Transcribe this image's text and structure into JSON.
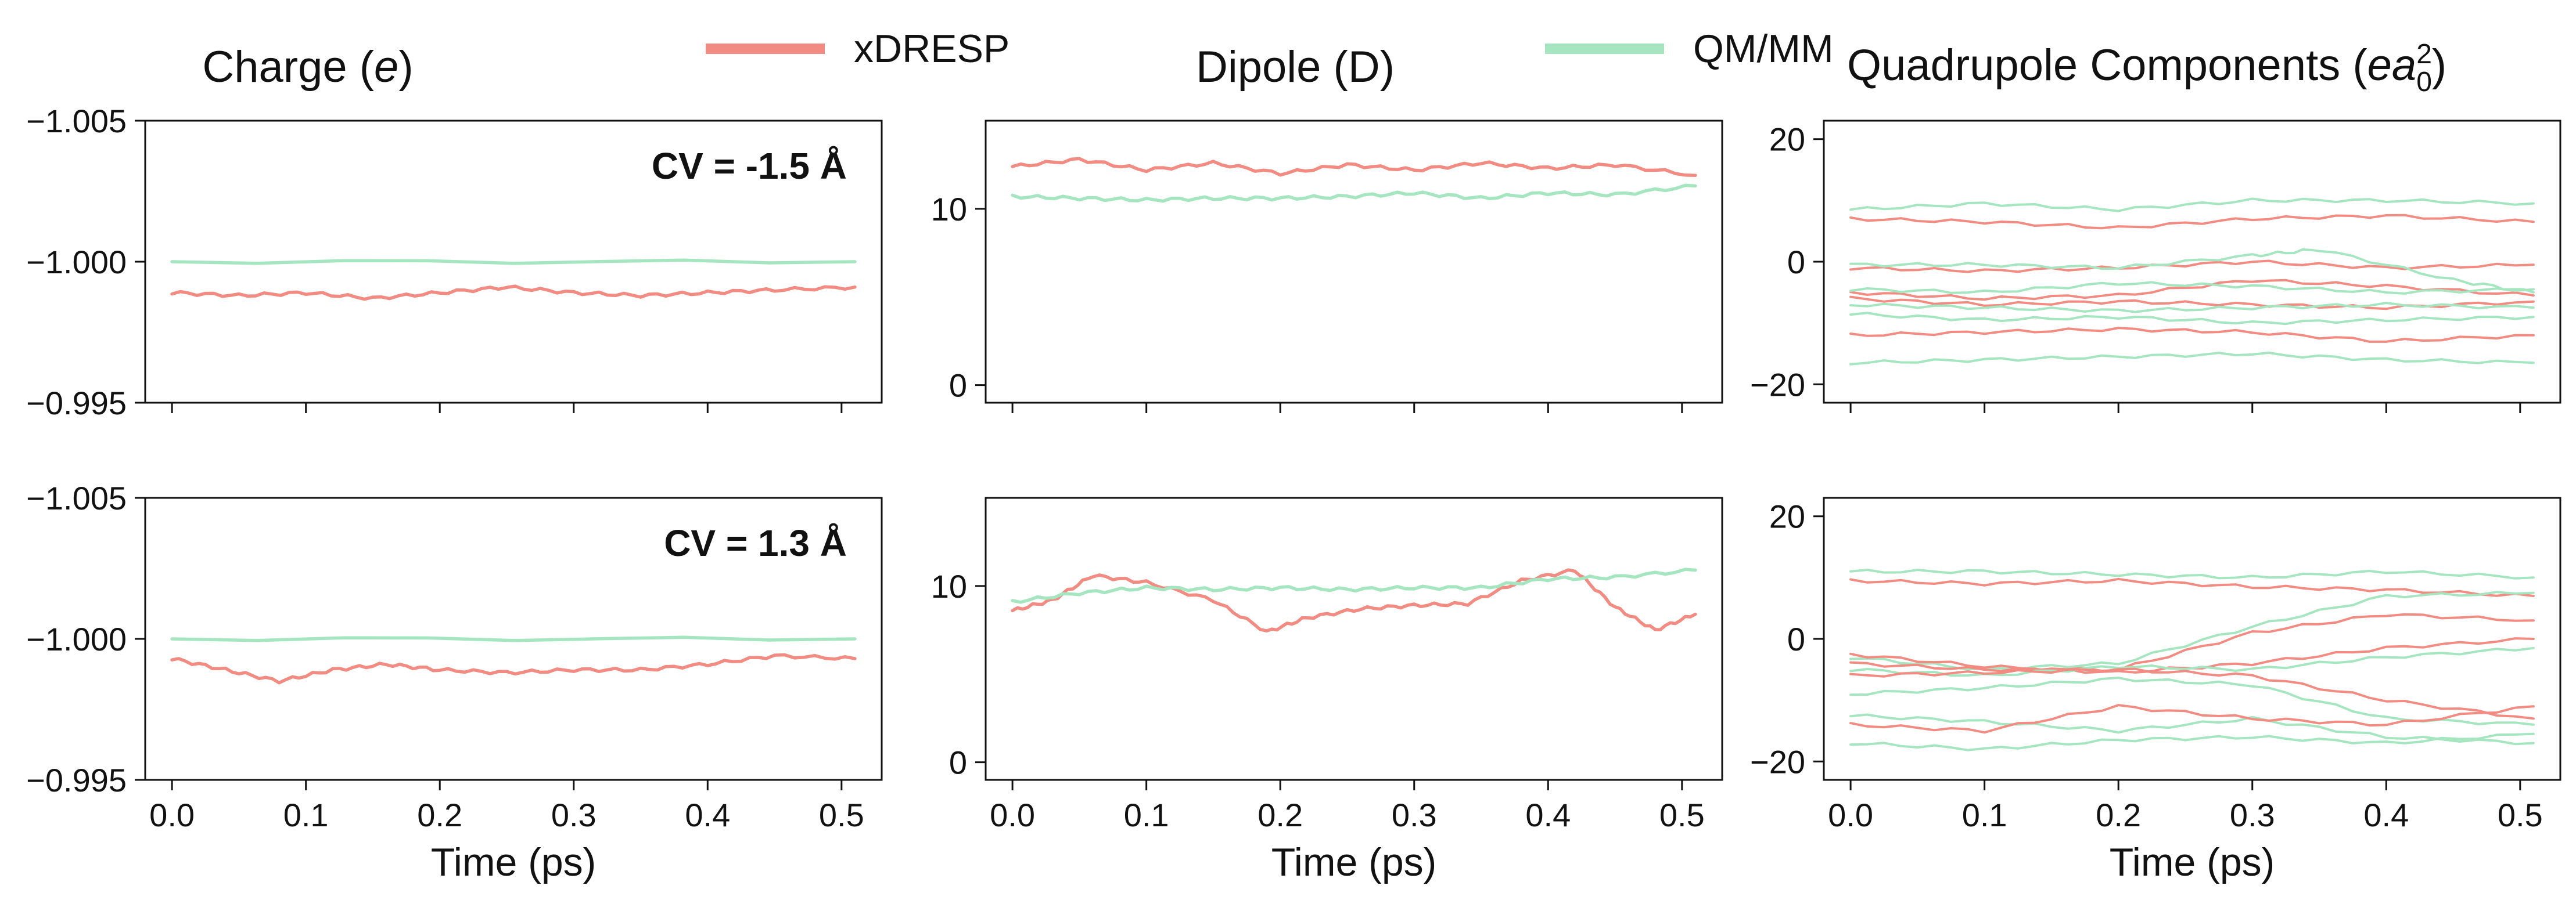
{
  "legend": {
    "xdresp": {
      "label": "xDRESP",
      "color": "#f28b82"
    },
    "qmmm": {
      "label": "QM/MM",
      "color": "#a5e6c0"
    }
  },
  "columns": {
    "charge": {
      "title_text": "Charge (",
      "title_sym": "e",
      "title_end": ")"
    },
    "dipole": {
      "title": "Dipole (D)"
    },
    "quadrupole": {
      "title_text": "Quadrupole Components (",
      "title_sym": "ea",
      "title_sub": "0",
      "title_sup": "2",
      "title_end": ")"
    }
  },
  "chart_data": [
    {
      "type": "line",
      "id": "charge-top",
      "title": "Charge (e)",
      "annotation": "CV = -1.5 Å",
      "xlabel": "",
      "ylabel": "",
      "xlim": [
        -0.02,
        0.53
      ],
      "ylim": [
        -1.005,
        -0.995
      ],
      "inverted_y": true,
      "x_ticks": [
        0.0,
        0.1,
        0.2,
        0.3,
        0.4,
        0.5
      ],
      "y_ticks": [
        -1.005,
        -1.0,
        -0.995
      ],
      "y_tick_labels": [
        "−1.005",
        "−1.000",
        "−0.995"
      ],
      "series": [
        {
          "name": "QM/MM",
          "x": [
            0,
            0.51
          ],
          "values": [
            -1.0,
            -1.0
          ]
        },
        {
          "name": "xDRESP",
          "x": [
            0,
            0.05,
            0.1,
            0.15,
            0.2,
            0.25,
            0.3,
            0.35,
            0.4,
            0.45,
            0.51
          ],
          "values": [
            -0.9989,
            -0.9988,
            -0.9989,
            -0.9987,
            -0.9989,
            -0.9991,
            -0.9989,
            -0.9988,
            -0.9989,
            -0.999,
            -0.9991
          ]
        }
      ]
    },
    {
      "type": "line",
      "id": "charge-bottom",
      "title": "",
      "annotation": "CV = 1.3 Å",
      "xlabel": "Time (ps)",
      "ylabel": "",
      "xlim": [
        -0.02,
        0.53
      ],
      "ylim": [
        -1.005,
        -0.995
      ],
      "inverted_y": true,
      "x_ticks": [
        0.0,
        0.1,
        0.2,
        0.3,
        0.4,
        0.5
      ],
      "x_tick_labels": [
        "0.0",
        "0.1",
        "0.2",
        "0.3",
        "0.4",
        "0.5"
      ],
      "y_ticks": [
        -1.005,
        -1.0,
        -0.995
      ],
      "y_tick_labels": [
        "−1.005",
        "−1.000",
        "−0.995"
      ],
      "series": [
        {
          "name": "QM/MM",
          "x": [
            0,
            0.51
          ],
          "values": [
            -1.0,
            -1.0
          ]
        },
        {
          "name": "xDRESP",
          "x": [
            0,
            0.04,
            0.08,
            0.12,
            0.16,
            0.2,
            0.25,
            0.3,
            0.35,
            0.4,
            0.45,
            0.51
          ],
          "values": [
            -0.9993,
            -0.9989,
            -0.9985,
            -0.9989,
            -0.9991,
            -0.9989,
            -0.9988,
            -0.9989,
            -0.9989,
            -0.9991,
            -0.9994,
            -0.9993
          ]
        }
      ]
    },
    {
      "type": "line",
      "id": "dipole-top",
      "title": "Dipole (D)",
      "xlabel": "",
      "ylabel": "",
      "xlim": [
        -0.02,
        0.53
      ],
      "ylim": [
        -1,
        15
      ],
      "x_ticks": [
        0.0,
        0.1,
        0.2,
        0.3,
        0.4,
        0.5
      ],
      "y_ticks": [
        0,
        10
      ],
      "y_tick_labels": [
        "0",
        "10"
      ],
      "series": [
        {
          "name": "xDRESP",
          "x": [
            0,
            0.05,
            0.1,
            0.15,
            0.2,
            0.25,
            0.3,
            0.35,
            0.4,
            0.45,
            0.51
          ],
          "values": [
            12.4,
            12.8,
            12.2,
            12.6,
            12.0,
            12.5,
            12.2,
            12.6,
            12.3,
            12.5,
            11.9
          ]
        },
        {
          "name": "QM/MM",
          "x": [
            0,
            0.05,
            0.1,
            0.15,
            0.2,
            0.25,
            0.3,
            0.35,
            0.4,
            0.45,
            0.51
          ],
          "values": [
            10.7,
            10.6,
            10.5,
            10.6,
            10.6,
            10.7,
            10.9,
            10.6,
            10.9,
            10.8,
            11.3
          ]
        }
      ]
    },
    {
      "type": "line",
      "id": "dipole-bottom",
      "title": "",
      "xlabel": "Time (ps)",
      "ylabel": "",
      "xlim": [
        -0.02,
        0.53
      ],
      "ylim": [
        -1,
        15
      ],
      "x_ticks": [
        0.0,
        0.1,
        0.2,
        0.3,
        0.4,
        0.5
      ],
      "x_tick_labels": [
        "0.0",
        "0.1",
        "0.2",
        "0.3",
        "0.4",
        "0.5"
      ],
      "y_ticks": [
        0,
        10
      ],
      "y_tick_labels": [
        "0",
        "10"
      ],
      "series": [
        {
          "name": "xDRESP",
          "x": [
            0,
            0.03,
            0.06,
            0.1,
            0.15,
            0.19,
            0.22,
            0.26,
            0.3,
            0.34,
            0.38,
            0.42,
            0.45,
            0.48,
            0.51
          ],
          "values": [
            8.6,
            9.2,
            10.6,
            10.2,
            9.2,
            7.4,
            8.2,
            8.7,
            8.9,
            9.0,
            10.3,
            10.9,
            8.8,
            7.5,
            8.4
          ]
        },
        {
          "name": "QM/MM",
          "x": [
            0,
            0.05,
            0.1,
            0.15,
            0.2,
            0.25,
            0.3,
            0.35,
            0.4,
            0.45,
            0.51
          ],
          "values": [
            9.1,
            9.6,
            9.9,
            9.8,
            9.9,
            9.8,
            9.9,
            9.9,
            10.4,
            10.5,
            10.9
          ]
        }
      ]
    },
    {
      "type": "line",
      "id": "quadrupole-top",
      "title": "Quadrupole Components (ea0^2)",
      "xlabel": "",
      "ylabel": "",
      "xlim": [
        -0.02,
        0.53
      ],
      "ylim": [
        -23,
        23
      ],
      "x_ticks": [
        0.0,
        0.1,
        0.2,
        0.3,
        0.4,
        0.5
      ],
      "y_ticks": [
        20,
        0,
        -20
      ],
      "y_tick_labels": [
        "20",
        "0",
        "−20"
      ],
      "series": [
        {
          "name": "QM/MM",
          "x": [
            0,
            0.1,
            0.2,
            0.3,
            0.4,
            0.51
          ],
          "values": [
            8.5,
            9.5,
            8.5,
            10.0,
            10.0,
            9.5
          ]
        },
        {
          "name": "xDRESP",
          "x": [
            0,
            0.1,
            0.2,
            0.3,
            0.4,
            0.51
          ],
          "values": [
            7.0,
            6.5,
            5.5,
            7.0,
            7.5,
            6.5
          ]
        },
        {
          "name": "xDRESP",
          "x": [
            0,
            0.1,
            0.2,
            0.3,
            0.4,
            0.51
          ],
          "values": [
            -1.0,
            -1.5,
            -1.0,
            0.0,
            -1.0,
            -0.5
          ]
        },
        {
          "name": "QM/MM",
          "x": [
            0,
            0.1,
            0.2,
            0.3,
            0.35,
            0.45,
            0.51
          ],
          "values": [
            -0.5,
            -0.5,
            -1.0,
            1.0,
            2.0,
            -3.0,
            -5.0
          ]
        },
        {
          "name": "xDRESP",
          "x": [
            0,
            0.1,
            0.2,
            0.3,
            0.4,
            0.51
          ],
          "values": [
            -5.0,
            -6.0,
            -5.5,
            -3.0,
            -4.0,
            -5.5
          ]
        },
        {
          "name": "QM/MM",
          "x": [
            0,
            0.1,
            0.2,
            0.3,
            0.4,
            0.51
          ],
          "values": [
            -4.5,
            -5.0,
            -3.5,
            -4.0,
            -5.0,
            -4.5
          ]
        },
        {
          "name": "xDRESP",
          "x": [
            0,
            0.1,
            0.2,
            0.3,
            0.4,
            0.51
          ],
          "values": [
            -6.0,
            -7.0,
            -6.5,
            -7.0,
            -7.5,
            -6.5
          ]
        },
        {
          "name": "QM/MM",
          "x": [
            0,
            0.1,
            0.2,
            0.3,
            0.4,
            0.51
          ],
          "values": [
            -7.0,
            -7.5,
            -8.0,
            -7.5,
            -7.0,
            -7.5
          ]
        },
        {
          "name": "QM/MM",
          "x": [
            0,
            0.1,
            0.2,
            0.3,
            0.4,
            0.51
          ],
          "values": [
            -8.5,
            -9.5,
            -9.0,
            -10.0,
            -9.5,
            -9.0
          ]
        },
        {
          "name": "xDRESP",
          "x": [
            0,
            0.1,
            0.2,
            0.3,
            0.4,
            0.51
          ],
          "values": [
            -12.0,
            -11.5,
            -11.0,
            -11.5,
            -13.0,
            -12.0
          ]
        },
        {
          "name": "QM/MM",
          "x": [
            0,
            0.1,
            0.2,
            0.3,
            0.4,
            0.51
          ],
          "values": [
            -16.5,
            -16.0,
            -15.5,
            -15.0,
            -16.0,
            -16.5
          ]
        }
      ]
    },
    {
      "type": "line",
      "id": "quadrupole-bottom",
      "title": "",
      "xlabel": "Time (ps)",
      "ylabel": "",
      "xlim": [
        -0.02,
        0.53
      ],
      "ylim": [
        -23,
        23
      ],
      "x_ticks": [
        0.0,
        0.1,
        0.2,
        0.3,
        0.4,
        0.5
      ],
      "x_tick_labels": [
        "0.0",
        "0.1",
        "0.2",
        "0.3",
        "0.4",
        "0.5"
      ],
      "y_ticks": [
        20,
        0,
        -20
      ],
      "y_tick_labels": [
        "20",
        "0",
        "−20"
      ],
      "series": [
        {
          "name": "QM/MM",
          "x": [
            0,
            0.1,
            0.2,
            0.3,
            0.4,
            0.51
          ],
          "values": [
            11.0,
            11.0,
            10.5,
            10.0,
            11.0,
            10.0
          ]
        },
        {
          "name": "xDRESP",
          "x": [
            0,
            0.1,
            0.2,
            0.3,
            0.4,
            0.51
          ],
          "values": [
            9.5,
            9.0,
            9.5,
            8.5,
            8.0,
            7.0
          ]
        },
        {
          "name": "QM/MM",
          "x": [
            0,
            0.1,
            0.2,
            0.3,
            0.4,
            0.51
          ],
          "values": [
            -3.0,
            -5.0,
            -4.0,
            2.0,
            7.0,
            7.5
          ]
        },
        {
          "name": "xDRESP",
          "x": [
            0,
            0.1,
            0.2,
            0.3,
            0.4,
            0.51
          ],
          "values": [
            -4.0,
            -5.0,
            -5.0,
            1.0,
            4.0,
            3.0
          ]
        },
        {
          "name": "xDRESP",
          "x": [
            0,
            0.1,
            0.2,
            0.3,
            0.4,
            0.51
          ],
          "values": [
            -2.5,
            -4.5,
            -5.5,
            -4.0,
            -1.5,
            0.0
          ]
        },
        {
          "name": "QM/MM",
          "x": [
            0,
            0.1,
            0.2,
            0.3,
            0.4,
            0.51
          ],
          "values": [
            -5.0,
            -6.0,
            -4.5,
            -5.0,
            -3.0,
            -1.5
          ]
        },
        {
          "name": "xDRESP",
          "x": [
            0,
            0.1,
            0.2,
            0.3,
            0.4,
            0.51
          ],
          "values": [
            -6.0,
            -5.5,
            -5.0,
            -6.0,
            -10.0,
            -13.0
          ]
        },
        {
          "name": "QM/MM",
          "x": [
            0,
            0.1,
            0.2,
            0.3,
            0.4,
            0.51
          ],
          "values": [
            -9.0,
            -8.0,
            -6.5,
            -7.5,
            -13.0,
            -14.0
          ]
        },
        {
          "name": "QM/MM",
          "x": [
            0,
            0.1,
            0.2,
            0.3,
            0.4,
            0.51
          ],
          "values": [
            -12.5,
            -13.5,
            -15.0,
            -13.0,
            -16.0,
            -17.0
          ]
        },
        {
          "name": "xDRESP",
          "x": [
            0,
            0.1,
            0.2,
            0.3,
            0.4,
            0.51
          ],
          "values": [
            -14.0,
            -15.0,
            -11.0,
            -13.0,
            -14.0,
            -11.0
          ]
        },
        {
          "name": "QM/MM",
          "x": [
            0,
            0.1,
            0.2,
            0.3,
            0.4,
            0.51
          ],
          "values": [
            -17.0,
            -18.0,
            -16.5,
            -16.0,
            -17.0,
            -15.5
          ]
        }
      ]
    }
  ]
}
